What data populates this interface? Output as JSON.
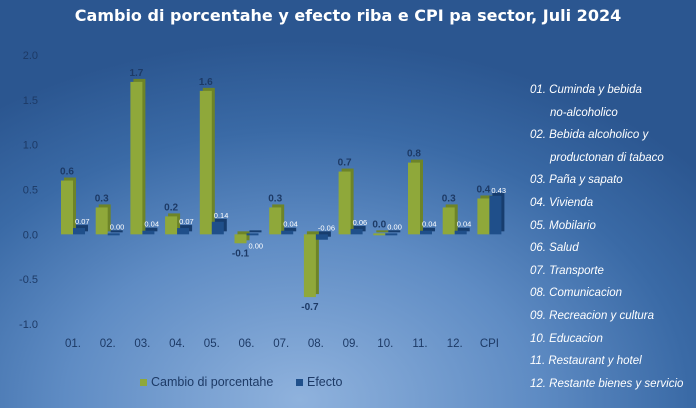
{
  "chart_data": {
    "type": "bar",
    "title": "Cambio di porcentahe y efecto riba e CPI pa sector, Juli 2024",
    "categories": [
      "01.",
      "02.",
      "03.",
      "04.",
      "05.",
      "06.",
      "07.",
      "08.",
      "09.",
      "10.",
      "11.",
      "12.",
      "CPI"
    ],
    "series": [
      {
        "name": "Cambio di porcentahe",
        "color": "#8fa83a",
        "values": [
          0.6,
          0.3,
          1.7,
          0.2,
          1.6,
          -0.1,
          0.3,
          -0.7,
          0.7,
          0.0,
          0.8,
          0.3,
          0.4
        ],
        "labels": [
          "0.6",
          "0.3",
          "1.7",
          "0.2",
          "1.6",
          "-0.1",
          "0.3",
          "-0.7",
          "0.7",
          "0.0",
          "0.8",
          "0.3",
          "0.4"
        ]
      },
      {
        "name": "Efecto",
        "color": "#1f4f8a",
        "values": [
          0.07,
          0.0,
          0.04,
          0.07,
          0.14,
          0.0,
          0.04,
          -0.06,
          0.06,
          0.0,
          0.04,
          0.04,
          0.43
        ],
        "labels": [
          "0.07",
          "0.00",
          "0.04",
          "0.07",
          "0.14",
          "0.00",
          "0.04",
          "-0.06",
          "0.06",
          "0.00",
          "0.04",
          "0.04",
          "0.43"
        ]
      }
    ],
    "yticks": [
      "2.0",
      "1.5",
      "1.0",
      "0.5",
      "0.0",
      "-0.5",
      "-1.0"
    ],
    "ylim": [
      -1.0,
      2.0
    ],
    "grid": false,
    "legend_position": "bottom"
  },
  "category_legend": [
    "01. Cuminda y bebida",
    "no-alcoholico",
    "02. Bebida alcoholico y",
    "productonan di tabaco",
    "03. Paña y sapato",
    "04. Vivienda",
    "05. Mobilario",
    "06. Salud",
    "07. Transporte",
    "08. Comunicacion",
    "09. Recreacion y cultura",
    "10. Educacion",
    "11. Restaurant y hotel",
    "12. Restante bienes y servicio"
  ]
}
